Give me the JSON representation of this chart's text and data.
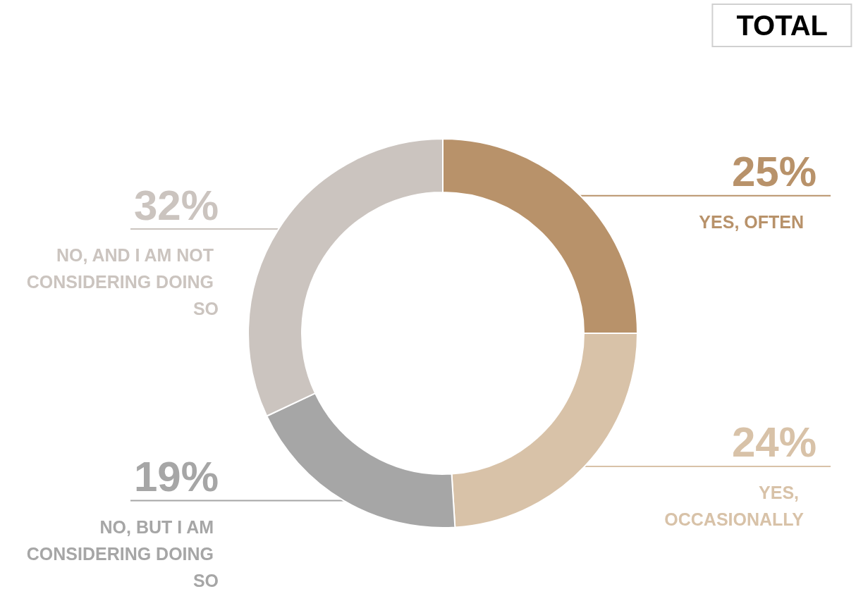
{
  "chart_data": {
    "type": "donut",
    "title": "TOTAL",
    "categories": [
      "YES, OFTEN",
      "YES, OCCASIONALLY",
      "NO, BUT I AM CONSIDERING DOING SO",
      "NO, AND I AM NOT CONSIDERING DOING SO"
    ],
    "values": [
      25,
      24,
      19,
      32
    ],
    "colors": [
      "#b8926a",
      "#d8c2a8",
      "#a6a6a6",
      "#cbc4bf"
    ],
    "value_labels": [
      "25%",
      "24%",
      "19%",
      "32%"
    ]
  }
}
